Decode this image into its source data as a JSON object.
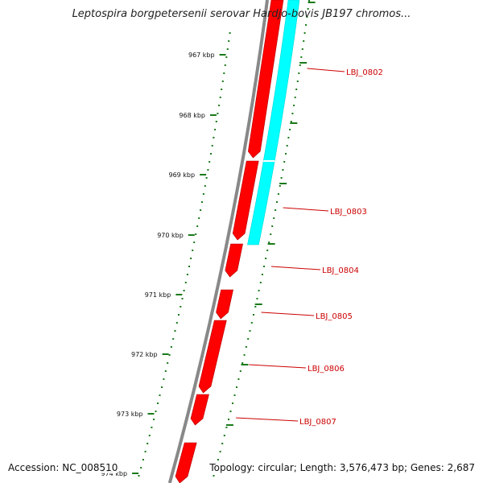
{
  "header": {
    "title": "Leptospira borgpetersenii serovar Hardjo-bovis JB197 chromos..."
  },
  "footer": {
    "accession": "Accession: NC_008510",
    "summary": "Topology: circular; Length: 3,576,473 bp; Genes: 2,687"
  },
  "colors": {
    "backbone": "#888888",
    "gene_forward": "#ff0000",
    "gene_reverse": "#00ffff",
    "tick": "#1a7a1a",
    "gene_label": "#cc0000",
    "label_line": "#cc0000"
  },
  "ticks": [
    {
      "label": "967 kbp"
    },
    {
      "label": "968 kbp"
    },
    {
      "label": "969 kbp"
    },
    {
      "label": "970 kbp"
    },
    {
      "label": "971 kbp"
    },
    {
      "label": "972 kbp"
    },
    {
      "label": "973 kbp"
    },
    {
      "label": "974 kbp"
    }
  ],
  "genes": [
    {
      "label": "LBJ_0802"
    },
    {
      "label": "LBJ_0803"
    },
    {
      "label": "LBJ_0804"
    },
    {
      "label": "LBJ_0805"
    },
    {
      "label": "LBJ_0806"
    },
    {
      "label": "LBJ_0807"
    }
  ]
}
